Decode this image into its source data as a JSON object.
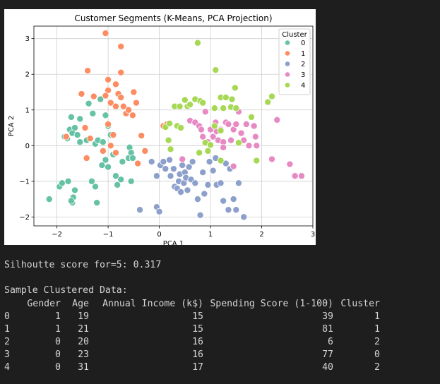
{
  "chart_data": {
    "type": "scatter",
    "title": "Customer Segments (K-Means, PCA Projection)",
    "xlabel": "PCA 1",
    "ylabel": "PCA 2",
    "xlim": [
      -2.45,
      3.0
    ],
    "ylim": [
      -2.25,
      3.35
    ],
    "xticks": [
      -2,
      -1,
      0,
      1,
      2,
      3
    ],
    "yticks": [
      -2,
      -1,
      0,
      1,
      2,
      3
    ],
    "grid": true,
    "legend": {
      "title": "Cluster",
      "placement": "top-right"
    },
    "series": [
      {
        "name": "0",
        "color": "#66c2a5",
        "points": [
          [
            -2.15,
            -1.5
          ],
          [
            -1.95,
            -1.15
          ],
          [
            -1.9,
            -1.05
          ],
          [
            -1.78,
            -1.0
          ],
          [
            -1.7,
            -1.6
          ],
          [
            -1.68,
            -1.45
          ],
          [
            -1.72,
            -1.55
          ],
          [
            -1.65,
            -1.25
          ],
          [
            -1.85,
            0.25
          ],
          [
            -1.8,
            0.2
          ],
          [
            -1.75,
            0.45
          ],
          [
            -1.7,
            0.35
          ],
          [
            -1.65,
            0.5
          ],
          [
            -1.6,
            0.3
          ],
          [
            -1.55,
            0.1
          ],
          [
            -1.72,
            0.8
          ],
          [
            -1.55,
            0.75
          ],
          [
            -1.42,
            0.15
          ],
          [
            -1.38,
            1.18
          ],
          [
            -1.3,
            0.9
          ],
          [
            -1.25,
            0.05
          ],
          [
            -1.2,
            0.15
          ],
          [
            -1.32,
            -1.0
          ],
          [
            -1.25,
            -1.15
          ],
          [
            -1.22,
            -1.6
          ],
          [
            -1.15,
            1.3
          ],
          [
            -1.1,
            0.1
          ],
          [
            -1.05,
            0.85
          ],
          [
            -1.0,
            0.55
          ],
          [
            -0.95,
            0.3
          ],
          [
            -1.12,
            -0.55
          ],
          [
            -1.05,
            -0.4
          ],
          [
            -1.0,
            -0.6
          ],
          [
            -0.9,
            -0.25
          ],
          [
            -0.85,
            -0.85
          ],
          [
            -0.82,
            -1.1
          ],
          [
            -0.75,
            -0.95
          ],
          [
            -0.72,
            -0.45
          ],
          [
            -0.6,
            -0.35
          ],
          [
            -0.58,
            -0.05
          ],
          [
            -0.55,
            -0.2
          ],
          [
            -0.52,
            -0.35
          ],
          [
            -0.55,
            -1.0
          ]
        ]
      },
      {
        "name": "1",
        "color": "#fc8d62",
        "points": [
          [
            -1.05,
            3.15
          ],
          [
            -0.75,
            2.78
          ],
          [
            -1.4,
            2.1
          ],
          [
            -1.0,
            1.85
          ],
          [
            -1.0,
            1.55
          ],
          [
            -0.85,
            1.72
          ],
          [
            -0.8,
            1.45
          ],
          [
            -0.75,
            2.05
          ],
          [
            -1.52,
            1.45
          ],
          [
            -1.28,
            1.38
          ],
          [
            -1.05,
            1.4
          ],
          [
            -0.95,
            1.2
          ],
          [
            -0.85,
            1.1
          ],
          [
            -0.75,
            1.35
          ],
          [
            -0.7,
            1.1
          ],
          [
            -0.65,
            0.9
          ],
          [
            -0.6,
            1.0
          ],
          [
            -0.5,
            1.5
          ],
          [
            -0.45,
            1.2
          ],
          [
            -0.52,
            0.85
          ],
          [
            -1.82,
            0.25
          ],
          [
            -1.45,
            0.5
          ],
          [
            -1.35,
            0.2
          ],
          [
            -1.42,
            -0.35
          ],
          [
            -1.0,
            0.6
          ],
          [
            -0.9,
            0.3
          ],
          [
            -0.95,
            0.0
          ],
          [
            -1.1,
            -0.15
          ],
          [
            -0.85,
            -0.2
          ],
          [
            -0.35,
            0.28
          ],
          [
            -0.28,
            -0.15
          ],
          [
            -0.42,
            -0.5
          ],
          [
            0.08,
            0.55
          ],
          [
            0.15,
            0.6
          ]
        ]
      },
      {
        "name": "2",
        "color": "#8da0cb",
        "points": [
          [
            -0.38,
            -1.8
          ],
          [
            -0.15,
            -0.45
          ],
          [
            -0.05,
            -0.85
          ],
          [
            -0.05,
            -1.72
          ],
          [
            0.0,
            -1.85
          ],
          [
            0.02,
            -0.55
          ],
          [
            0.08,
            -0.45
          ],
          [
            0.12,
            -0.65
          ],
          [
            0.2,
            -0.4
          ],
          [
            0.22,
            -0.85
          ],
          [
            0.28,
            -0.65
          ],
          [
            0.3,
            -1.15
          ],
          [
            0.35,
            -1.2
          ],
          [
            0.38,
            -1.0
          ],
          [
            0.4,
            -0.8
          ],
          [
            0.42,
            -1.3
          ],
          [
            0.45,
            -0.55
          ],
          [
            0.48,
            -1.05
          ],
          [
            0.5,
            -0.75
          ],
          [
            0.52,
            -0.9
          ],
          [
            0.55,
            -1.25
          ],
          [
            0.58,
            -0.6
          ],
          [
            0.62,
            -0.95
          ],
          [
            0.65,
            -0.45
          ],
          [
            0.7,
            -1.05
          ],
          [
            0.75,
            -1.5
          ],
          [
            0.8,
            -1.95
          ],
          [
            0.85,
            -0.75
          ],
          [
            0.88,
            -1.35
          ],
          [
            0.95,
            -1.1
          ],
          [
            0.98,
            -0.45
          ],
          [
            1.05,
            -0.7
          ],
          [
            1.1,
            -0.35
          ],
          [
            1.12,
            -1.1
          ],
          [
            1.2,
            -1.05
          ],
          [
            1.25,
            -1.55
          ],
          [
            1.3,
            -0.5
          ],
          [
            1.35,
            -1.8
          ],
          [
            1.38,
            -0.65
          ],
          [
            1.45,
            -1.5
          ],
          [
            1.5,
            -1.8
          ],
          [
            1.55,
            -1.05
          ],
          [
            1.65,
            -2.0
          ]
        ]
      },
      {
        "name": "3",
        "color": "#e78ac3",
        "points": [
          [
            0.45,
            -0.38
          ],
          [
            0.6,
            0.7
          ],
          [
            0.7,
            0.65
          ],
          [
            0.78,
            0.55
          ],
          [
            0.82,
            0.45
          ],
          [
            0.85,
            0.25
          ],
          [
            0.9,
            0.95
          ],
          [
            0.95,
            0.1
          ],
          [
            1.0,
            0.45
          ],
          [
            1.05,
            0.25
          ],
          [
            1.1,
            0.65
          ],
          [
            1.12,
            0.4
          ],
          [
            1.15,
            0.15
          ],
          [
            1.2,
            0.45
          ],
          [
            1.25,
            0.1
          ],
          [
            1.3,
            0.65
          ],
          [
            1.35,
            0.6
          ],
          [
            1.4,
            0.15
          ],
          [
            1.45,
            0.45
          ],
          [
            1.5,
            0.6
          ],
          [
            1.55,
            0.95
          ],
          [
            1.6,
            0.35
          ],
          [
            1.65,
            0.15
          ],
          [
            1.7,
            0.6
          ],
          [
            1.75,
            0.0
          ],
          [
            1.85,
            0.55
          ],
          [
            1.88,
            0.25
          ],
          [
            1.9,
            0.0
          ],
          [
            2.2,
            -0.38
          ],
          [
            2.3,
            0.72
          ],
          [
            2.55,
            -0.52
          ],
          [
            2.65,
            -0.85
          ],
          [
            2.78,
            -0.85
          ],
          [
            1.45,
            -0.58
          ],
          [
            1.25,
            -0.05
          ]
        ]
      },
      {
        "name": "4",
        "color": "#a6d854",
        "points": [
          [
            0.75,
            2.88
          ],
          [
            1.1,
            2.12
          ],
          [
            1.48,
            1.62
          ],
          [
            1.2,
            1.35
          ],
          [
            1.3,
            1.35
          ],
          [
            1.42,
            1.3
          ],
          [
            1.08,
            1.05
          ],
          [
            1.25,
            1.05
          ],
          [
            1.4,
            1.08
          ],
          [
            1.5,
            1.05
          ],
          [
            0.5,
            1.28
          ],
          [
            0.55,
            1.1
          ],
          [
            0.6,
            1.15
          ],
          [
            0.7,
            1.3
          ],
          [
            0.8,
            1.25
          ],
          [
            0.85,
            1.2
          ],
          [
            0.3,
            1.1
          ],
          [
            0.4,
            1.1
          ],
          [
            0.12,
            0.52
          ],
          [
            0.2,
            0.62
          ],
          [
            0.35,
            0.55
          ],
          [
            0.42,
            0.5
          ],
          [
            0.18,
            0.15
          ],
          [
            0.22,
            -0.1
          ],
          [
            0.78,
            -0.2
          ],
          [
            0.9,
            0.08
          ],
          [
            1.0,
            0.02
          ],
          [
            1.2,
            0.42
          ],
          [
            1.08,
            0.55
          ],
          [
            0.95,
            -0.15
          ],
          [
            1.2,
            -0.42
          ],
          [
            1.55,
            0.08
          ],
          [
            1.8,
            0.8
          ],
          [
            1.9,
            -0.42
          ],
          [
            2.12,
            1.22
          ],
          [
            2.2,
            1.38
          ]
        ]
      }
    ]
  },
  "console": {
    "silhouette": "Silhoutte score for=5: 0.317",
    "sample_title": "Sample Clustered Data:",
    "columns": [
      "Gender",
      "Age",
      "Annual Income (k$)",
      "Spending Score (1-100)",
      "Cluster"
    ],
    "rows": [
      {
        "idx": "0",
        "vals": [
          "1",
          "19",
          "15",
          "39",
          "1"
        ]
      },
      {
        "idx": "1",
        "vals": [
          "1",
          "21",
          "15",
          "81",
          "1"
        ]
      },
      {
        "idx": "2",
        "vals": [
          "0",
          "20",
          "16",
          "6",
          "2"
        ]
      },
      {
        "idx": "3",
        "vals": [
          "0",
          "23",
          "16",
          "77",
          "0"
        ]
      },
      {
        "idx": "4",
        "vals": [
          "0",
          "31",
          "17",
          "40",
          "2"
        ]
      }
    ]
  }
}
